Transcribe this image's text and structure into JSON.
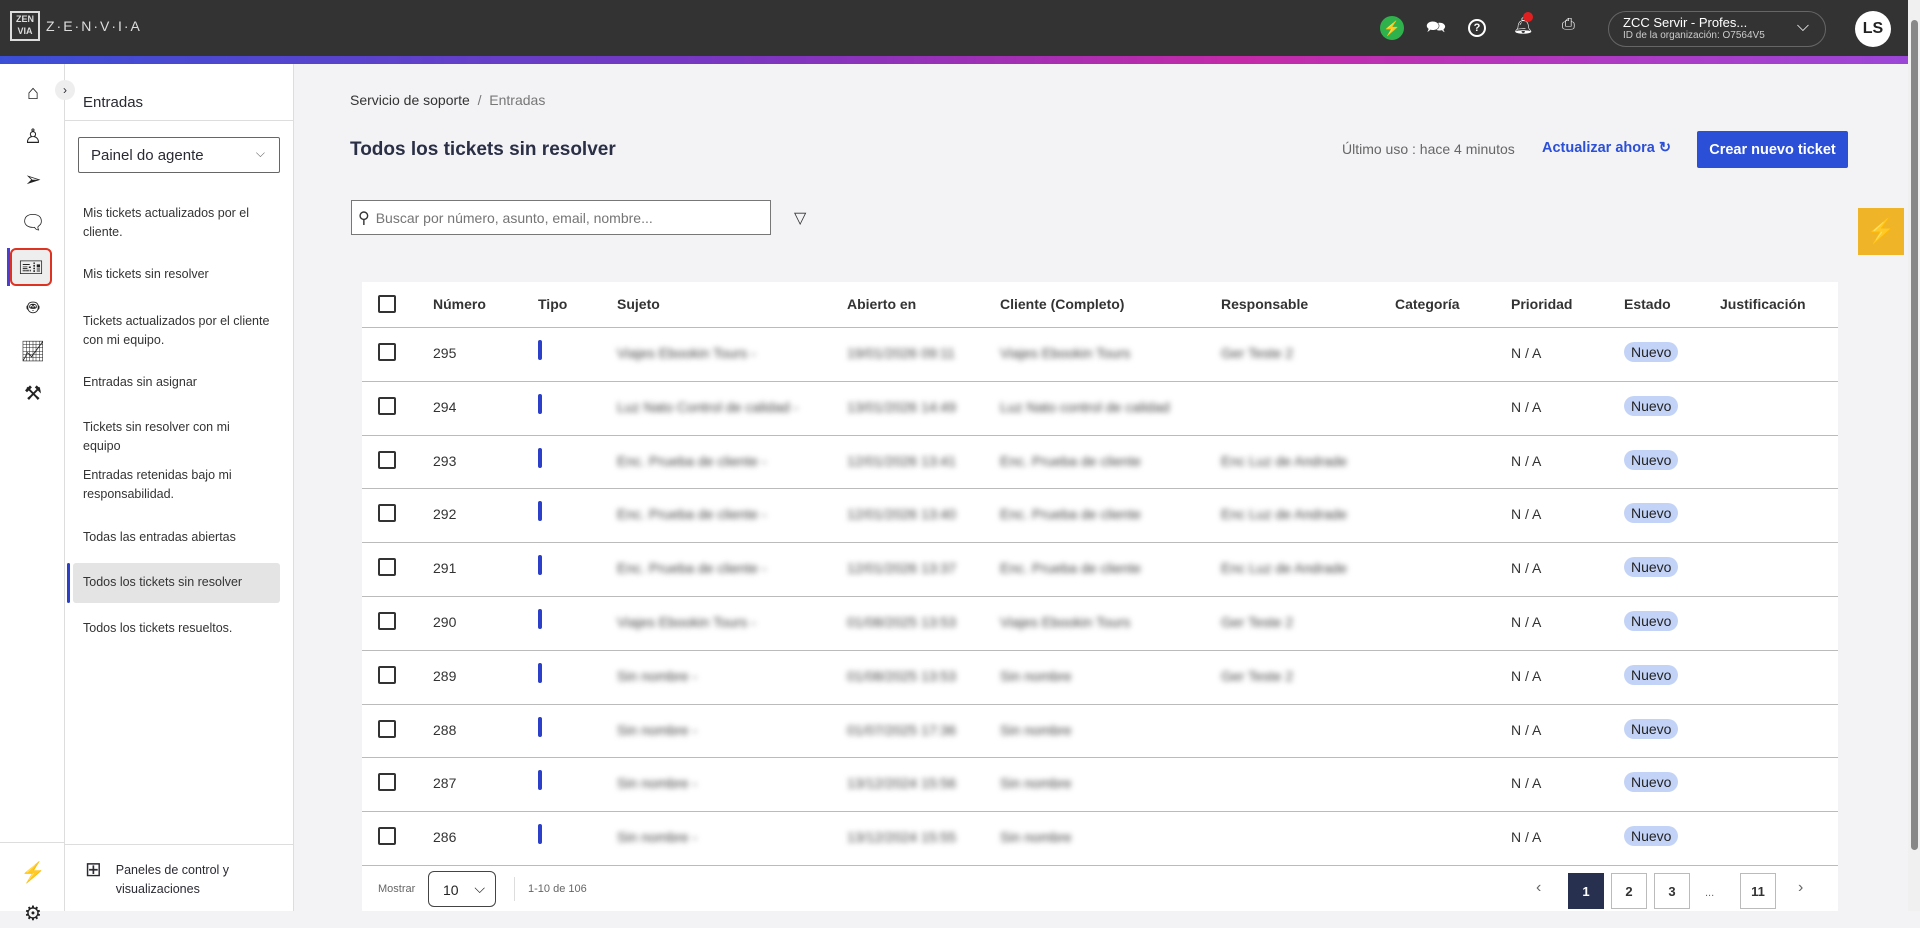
{
  "header": {
    "logo_text": "Z·E·N·V·I·A",
    "org_name": "ZCC Servir - Profes...",
    "org_id": "ID de la organización: O7564V5",
    "avatar": "LS"
  },
  "rail": {
    "items": [
      "home",
      "contacts",
      "send",
      "chat",
      "tickets",
      "bot",
      "analytics",
      "tools"
    ],
    "active": "tickets"
  },
  "sidebar": {
    "title": "Entradas",
    "view_select": "Painel do agente",
    "items": [
      "Mis tickets actualizados por el cliente.",
      "Mis tickets sin resolver",
      "Tickets actualizados por el cliente con mi equipo.",
      "Entradas sin asignar",
      "Tickets sin resolver con mi equipo",
      "Entradas retenidas bajo mi responsabilidad.",
      "Todas las entradas abiertas",
      "Todos los tickets sin resolver",
      "Todos los tickets resueltos."
    ],
    "active_index": 7,
    "footer": "Paneles de control y visualizaciones"
  },
  "main": {
    "breadcrumb": [
      "Servicio de soporte",
      "Entradas"
    ],
    "title": "Todos los tickets sin resolver",
    "last_used": "Último uso : hace 4 minutos",
    "refresh": "Actualizar ahora",
    "new_ticket": "Crear nuevo ticket",
    "search_placeholder": "Buscar por número, asunto, email, nombre..."
  },
  "table": {
    "columns": [
      "Número",
      "Tipo",
      "Sujeto",
      "Abierto en",
      "Cliente (Completo)",
      "Responsable",
      "Categoría",
      "Prioridad",
      "Estado",
      "Justificación"
    ],
    "rows": [
      {
        "num": "295",
        "subject": "Viajes Ebookin Tours -",
        "opened": "19/01/2026 09:11",
        "client": "Viajes Ebookin Tours",
        "owner": "Ger Teste 2",
        "priority": "N / A",
        "status": "Nuevo"
      },
      {
        "num": "294",
        "subject": "Luz Nato Control de calidad -",
        "opened": "13/01/2026 14:49",
        "client": "Luz Nato control de calidad",
        "owner": "",
        "priority": "N / A",
        "status": "Nuevo"
      },
      {
        "num": "293",
        "subject": "Enc. Prueba de cliente -",
        "opened": "12/01/2026 13:41",
        "client": "Enc. Prueba de cliente",
        "owner": "Enc Luz de Andrade",
        "priority": "N / A",
        "status": "Nuevo"
      },
      {
        "num": "292",
        "subject": "Enc. Prueba de cliente -",
        "opened": "12/01/2026 13:40",
        "client": "Enc. Prueba de cliente",
        "owner": "Enc Luz de Andrade",
        "priority": "N / A",
        "status": "Nuevo"
      },
      {
        "num": "291",
        "subject": "Enc. Prueba de cliente -",
        "opened": "12/01/2026 13:37",
        "client": "Enc. Prueba de cliente",
        "owner": "Enc Luz de Andrade",
        "priority": "N / A",
        "status": "Nuevo"
      },
      {
        "num": "290",
        "subject": "Viajes Ebookin Tours -",
        "opened": "01/08/2025 13:53",
        "client": "Viajes Ebookin Tours",
        "owner": "Ger Teste 2",
        "priority": "N / A",
        "status": "Nuevo"
      },
      {
        "num": "289",
        "subject": "Sin nombre -",
        "opened": "01/08/2025 13:53",
        "client": "Sin nombre",
        "owner": "Ger Teste 2",
        "priority": "N / A",
        "status": "Nuevo"
      },
      {
        "num": "288",
        "subject": "Sin nombre -",
        "opened": "01/07/2025 17:36",
        "client": "Sin nombre",
        "owner": "",
        "priority": "N / A",
        "status": "Nuevo"
      },
      {
        "num": "287",
        "subject": "Sin nombre -",
        "opened": "13/12/2024 15:56",
        "client": "Sin nombre",
        "owner": "",
        "priority": "N / A",
        "status": "Nuevo"
      },
      {
        "num": "286",
        "subject": "Sin nombre -",
        "opened": "13/12/2024 15:55",
        "client": "Sin nombre",
        "owner": "",
        "priority": "N / A",
        "status": "Nuevo"
      }
    ]
  },
  "footer": {
    "show_label": "Mostrar",
    "page_size": "10",
    "range": "1-10 de 106",
    "pages": [
      "1",
      "2",
      "3",
      "...",
      "11"
    ],
    "current_page": "1"
  },
  "colors": {
    "accent": "#2b4fd6",
    "badge": "#c3d3f7",
    "topbar": "#333333"
  }
}
